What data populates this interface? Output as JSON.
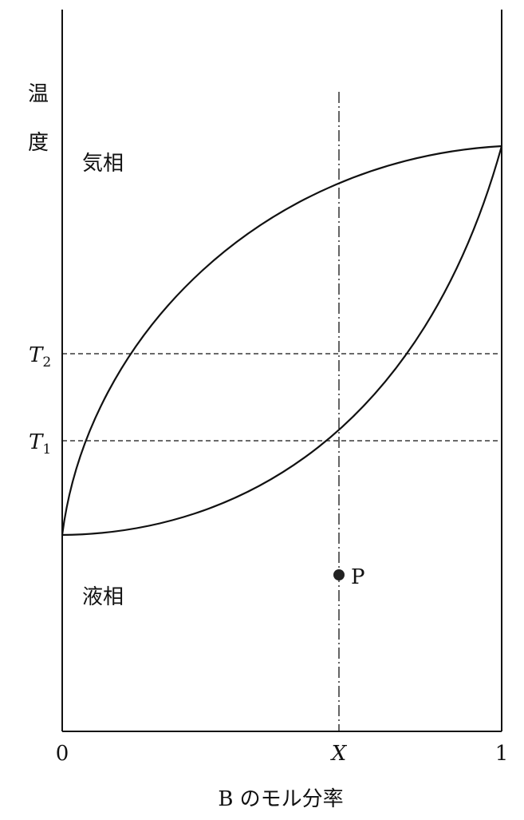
{
  "diagram": {
    "y_axis_label": [
      "温",
      "度"
    ],
    "region_vapor": "気相",
    "region_liquid": "液相",
    "t2_label": {
      "main": "T",
      "sub": "2"
    },
    "t1_label": {
      "main": "T",
      "sub": "1"
    },
    "point_label": "P",
    "x_tick_0": "0",
    "x_tick_x": "X",
    "x_tick_1": "1",
    "x_axis_label": "B のモル分率"
  }
}
